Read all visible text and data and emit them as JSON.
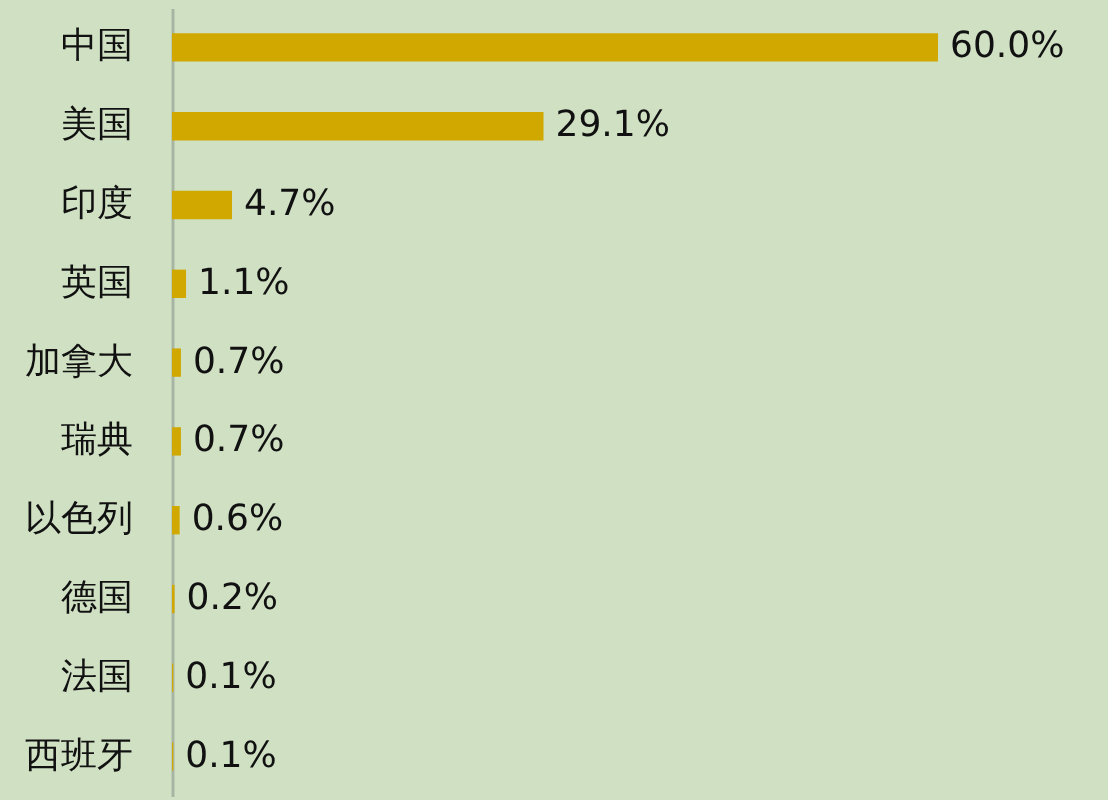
{
  "chart_data": {
    "type": "bar",
    "orientation": "horizontal",
    "categories": [
      "中国",
      "美国",
      "印度",
      "英国",
      "加拿大",
      "瑞典",
      "以色列",
      "德国",
      "法国",
      "西班牙"
    ],
    "values": [
      60.0,
      29.1,
      4.7,
      1.1,
      0.7,
      0.7,
      0.6,
      0.2,
      0.1,
      0.1
    ],
    "color": "#d1a800",
    "value_labels": [
      "60.0%",
      "29.1%",
      "4.7%",
      "1.1%",
      "0.7%",
      "0.7%",
      "0.6%",
      "0.2%",
      "0.1%",
      "0.1%"
    ]
  }
}
